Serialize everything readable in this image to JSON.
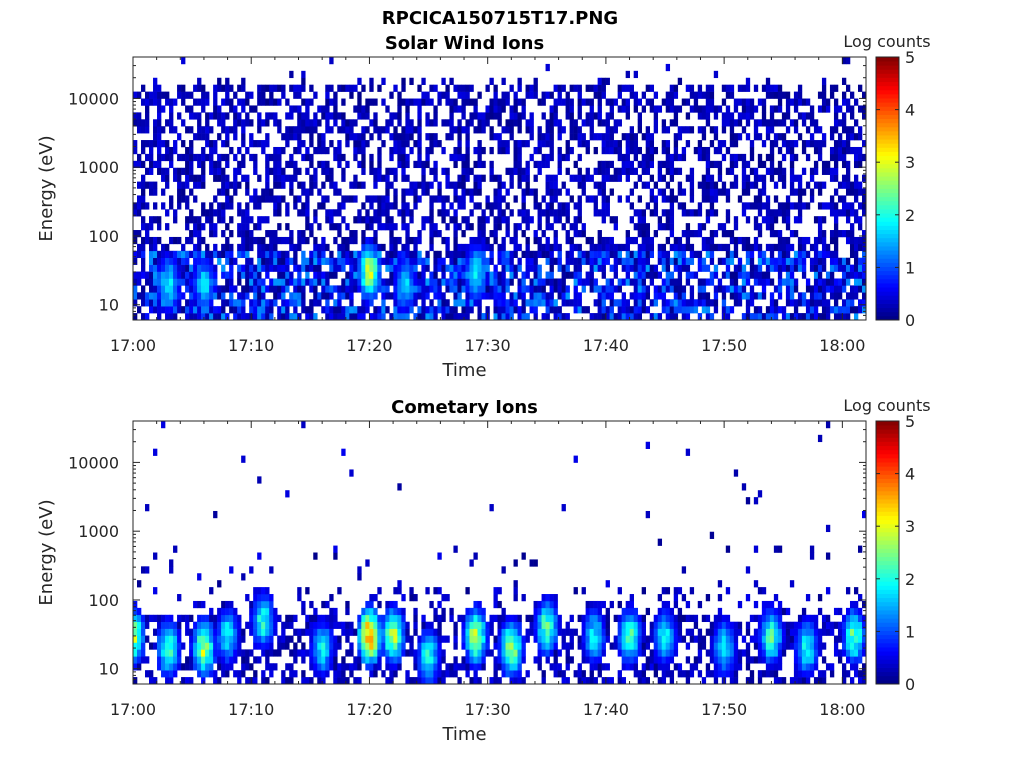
{
  "figure_title": "RPCICA150715T17.PNG",
  "chart_data": [
    {
      "type": "heatmap",
      "title": "Solar Wind Ions",
      "xlabel": "Time",
      "ylabel": "Energy (eV)",
      "x_ticks": [
        "17:00",
        "17:10",
        "17:20",
        "17:30",
        "17:40",
        "17:50",
        "18:00"
      ],
      "x_range": [
        "17:00",
        "18:02"
      ],
      "y_scale": "log",
      "y_ticks": [
        "10",
        "100",
        "1000",
        "10000"
      ],
      "y_range": [
        6,
        40000
      ],
      "colorbar": {
        "label": "Log counts",
        "ticks": [
          "0",
          "1",
          "2",
          "3",
          "4",
          "5"
        ],
        "range": [
          0,
          5
        ],
        "colormap": "jet"
      },
      "features": [
        {
          "description_energy_range_eV": [
            6,
            15000
          ],
          "typical_log_counts": 0.3
        },
        {
          "time": "17:20",
          "energy_eV": 30,
          "log_counts": 3.0
        },
        {
          "time": "17:29",
          "energy_eV": 30,
          "log_counts": 2.0
        },
        {
          "time": "17:03",
          "energy_eV": 20,
          "log_counts": 2.0
        },
        {
          "time": "17:06",
          "energy_eV": 20,
          "log_counts": 1.8
        },
        {
          "time": "17:23",
          "energy_eV": 20,
          "log_counts": 1.8
        }
      ]
    },
    {
      "type": "heatmap",
      "title": "Cometary Ions",
      "xlabel": "Time",
      "ylabel": "Energy (eV)",
      "x_ticks": [
        "17:00",
        "17:10",
        "17:20",
        "17:30",
        "17:40",
        "17:50",
        "18:00"
      ],
      "x_range": [
        "17:00",
        "18:02"
      ],
      "y_scale": "log",
      "y_ticks": [
        "10",
        "100",
        "1000",
        "10000"
      ],
      "y_range": [
        6,
        40000
      ],
      "colorbar": {
        "label": "Log counts",
        "ticks": [
          "0",
          "1",
          "2",
          "3",
          "4",
          "5"
        ],
        "range": [
          0,
          5
        ],
        "colormap": "jet"
      },
      "features": [
        {
          "time": "17:00",
          "energy_eV": 30,
          "log_counts": 3.0
        },
        {
          "time": "17:03",
          "energy_eV": 20,
          "log_counts": 2.5
        },
        {
          "time": "17:06",
          "energy_eV": 20,
          "log_counts": 3.0
        },
        {
          "time": "17:08",
          "energy_eV": 30,
          "log_counts": 2.0
        },
        {
          "time": "17:11",
          "energy_eV": 50,
          "log_counts": 2.2
        },
        {
          "time": "17:16",
          "energy_eV": 20,
          "log_counts": 2.0
        },
        {
          "time": "17:20",
          "energy_eV": 30,
          "log_counts": 4.0
        },
        {
          "time": "17:22",
          "energy_eV": 30,
          "log_counts": 3.0
        },
        {
          "time": "17:25",
          "energy_eV": 15,
          "log_counts": 2.2
        },
        {
          "time": "17:29",
          "energy_eV": 30,
          "log_counts": 3.0
        },
        {
          "time": "17:32",
          "energy_eV": 20,
          "log_counts": 3.0
        },
        {
          "time": "17:35",
          "energy_eV": 40,
          "log_counts": 2.5
        },
        {
          "time": "17:39",
          "energy_eV": 30,
          "log_counts": 2.0
        },
        {
          "time": "17:42",
          "energy_eV": 30,
          "log_counts": 2.5
        },
        {
          "time": "17:45",
          "energy_eV": 30,
          "log_counts": 2.0
        },
        {
          "time": "17:50",
          "energy_eV": 20,
          "log_counts": 2.0
        },
        {
          "time": "17:54",
          "energy_eV": 30,
          "log_counts": 2.5
        },
        {
          "time": "17:57",
          "energy_eV": 20,
          "log_counts": 2.2
        },
        {
          "time": "18:01",
          "energy_eV": 30,
          "log_counts": 2.5
        }
      ]
    }
  ]
}
